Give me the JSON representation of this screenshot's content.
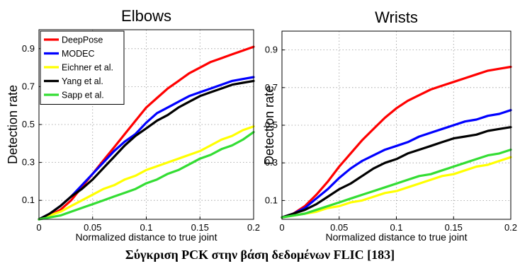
{
  "caption": "Σύγκριση PCK στην βάση δεδομένων FLIC [183]",
  "chart_data": [
    {
      "type": "line",
      "title": "Elbows",
      "xlabel": "Normalized distance to true joint",
      "ylabel": "Detection rate",
      "xlim": [
        0,
        0.2
      ],
      "ylim": [
        0,
        1
      ],
      "xticks": [
        0,
        0.05,
        0.1,
        0.15,
        0.2
      ],
      "xtick_labels": [
        "0",
        "0.05",
        "0.1",
        "0.15",
        "0.2"
      ],
      "yticks": [
        0.1,
        0.3,
        0.5,
        0.7,
        0.9
      ],
      "ytick_labels": [
        "0.1",
        "0.3",
        "0.5",
        "0.7",
        "0.9"
      ],
      "grid": true,
      "legend_position": "top-left",
      "x": [
        0,
        0.01,
        0.02,
        0.03,
        0.04,
        0.05,
        0.06,
        0.07,
        0.08,
        0.09,
        0.1,
        0.11,
        0.12,
        0.13,
        0.14,
        0.15,
        0.16,
        0.17,
        0.18,
        0.19,
        0.2
      ],
      "series": [
        {
          "name": "DeepPose",
          "color": "#ff0000",
          "values": [
            0,
            0.02,
            0.05,
            0.1,
            0.17,
            0.24,
            0.31,
            0.38,
            0.45,
            0.52,
            0.59,
            0.64,
            0.69,
            0.73,
            0.77,
            0.8,
            0.83,
            0.85,
            0.87,
            0.89,
            0.91
          ]
        },
        {
          "name": "MODEC",
          "color": "#0000ff",
          "values": [
            0,
            0.03,
            0.07,
            0.12,
            0.18,
            0.24,
            0.3,
            0.36,
            0.41,
            0.45,
            0.51,
            0.56,
            0.59,
            0.62,
            0.65,
            0.67,
            0.69,
            0.71,
            0.73,
            0.74,
            0.75
          ]
        },
        {
          "name": "Eichner et al.",
          "color": "#ffff00",
          "values": [
            0,
            0.02,
            0.04,
            0.07,
            0.1,
            0.13,
            0.16,
            0.18,
            0.21,
            0.23,
            0.26,
            0.28,
            0.3,
            0.32,
            0.34,
            0.36,
            0.39,
            0.42,
            0.44,
            0.47,
            0.49
          ]
        },
        {
          "name": "Yang et al.",
          "color": "#000000",
          "values": [
            0,
            0.03,
            0.07,
            0.12,
            0.16,
            0.21,
            0.27,
            0.33,
            0.39,
            0.44,
            0.48,
            0.52,
            0.55,
            0.59,
            0.62,
            0.65,
            0.67,
            0.69,
            0.71,
            0.72,
            0.73
          ]
        },
        {
          "name": "Sapp et al.",
          "color": "#33dd33",
          "values": [
            0,
            0.01,
            0.02,
            0.04,
            0.06,
            0.08,
            0.1,
            0.12,
            0.14,
            0.16,
            0.19,
            0.21,
            0.24,
            0.26,
            0.29,
            0.32,
            0.34,
            0.37,
            0.39,
            0.42,
            0.46
          ]
        }
      ]
    },
    {
      "type": "line",
      "title": "Wrists",
      "xlabel": "Normalized distance to true joint",
      "ylabel": "Detection rate",
      "xlim": [
        0,
        0.2
      ],
      "ylim": [
        0,
        1
      ],
      "xticks": [
        0,
        0.05,
        0.1,
        0.15,
        0.2
      ],
      "xtick_labels": [
        "0",
        "0.05",
        "0.1",
        "0.15",
        "0.2"
      ],
      "yticks": [
        0.1,
        0.3,
        0.5,
        0.7,
        0.9
      ],
      "ytick_labels": [
        "0.1",
        "0.3",
        "0.5",
        "0.7",
        "0.9"
      ],
      "grid": true,
      "legend_position": "none",
      "x": [
        0,
        0.01,
        0.02,
        0.03,
        0.04,
        0.05,
        0.06,
        0.07,
        0.08,
        0.09,
        0.1,
        0.11,
        0.12,
        0.13,
        0.14,
        0.15,
        0.16,
        0.17,
        0.18,
        0.19,
        0.2
      ],
      "series": [
        {
          "name": "DeepPose",
          "color": "#ff0000",
          "values": [
            0.01,
            0.03,
            0.07,
            0.13,
            0.2,
            0.28,
            0.35,
            0.42,
            0.48,
            0.54,
            0.59,
            0.63,
            0.66,
            0.69,
            0.71,
            0.73,
            0.75,
            0.77,
            0.79,
            0.8,
            0.81
          ]
        },
        {
          "name": "MODEC",
          "color": "#0000ff",
          "values": [
            0.01,
            0.03,
            0.06,
            0.11,
            0.16,
            0.22,
            0.27,
            0.31,
            0.34,
            0.37,
            0.39,
            0.41,
            0.44,
            0.46,
            0.48,
            0.5,
            0.52,
            0.53,
            0.55,
            0.56,
            0.58
          ]
        },
        {
          "name": "Eichner et al.",
          "color": "#ffff00",
          "values": [
            0.01,
            0.02,
            0.03,
            0.04,
            0.06,
            0.07,
            0.09,
            0.1,
            0.12,
            0.14,
            0.15,
            0.17,
            0.19,
            0.21,
            0.23,
            0.24,
            0.26,
            0.28,
            0.29,
            0.31,
            0.33
          ]
        },
        {
          "name": "Yang et al.",
          "color": "#000000",
          "values": [
            0.01,
            0.03,
            0.05,
            0.08,
            0.12,
            0.16,
            0.19,
            0.23,
            0.27,
            0.3,
            0.32,
            0.35,
            0.37,
            0.39,
            0.41,
            0.43,
            0.44,
            0.45,
            0.47,
            0.48,
            0.49
          ]
        },
        {
          "name": "Sapp et al.",
          "color": "#33dd33",
          "values": [
            0.01,
            0.02,
            0.03,
            0.05,
            0.07,
            0.09,
            0.11,
            0.13,
            0.15,
            0.17,
            0.19,
            0.21,
            0.23,
            0.24,
            0.26,
            0.28,
            0.3,
            0.32,
            0.34,
            0.35,
            0.37
          ]
        }
      ]
    }
  ]
}
